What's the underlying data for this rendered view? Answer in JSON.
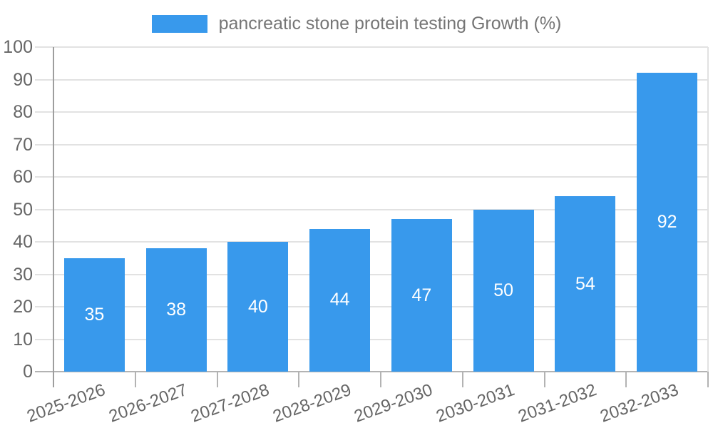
{
  "chart_data": {
    "type": "bar",
    "title": "",
    "legend": {
      "label": "pancreatic stone protein testing Growth (%)",
      "position": "top"
    },
    "categories": [
      "2025-2026",
      "2026-2027",
      "2027-2028",
      "2028-2029",
      "2029-2030",
      "2030-2031",
      "2031-2032",
      "2032-2033"
    ],
    "values": [
      35,
      38,
      40,
      44,
      47,
      50,
      54,
      92
    ],
    "xlabel": "",
    "ylabel": "",
    "ylim": [
      0,
      100
    ],
    "yticks": [
      0,
      10,
      20,
      30,
      40,
      50,
      60,
      70,
      80,
      90,
      100
    ],
    "grid": true,
    "colors": {
      "bar": "#3899ec",
      "bar_value_label": "#ffffff",
      "axis_text": "#666666",
      "legend_text": "#757575",
      "gridline": "#e2e2e2",
      "y_axis_line": "#9e9e9e",
      "baseline": "#b3b3b3"
    }
  }
}
